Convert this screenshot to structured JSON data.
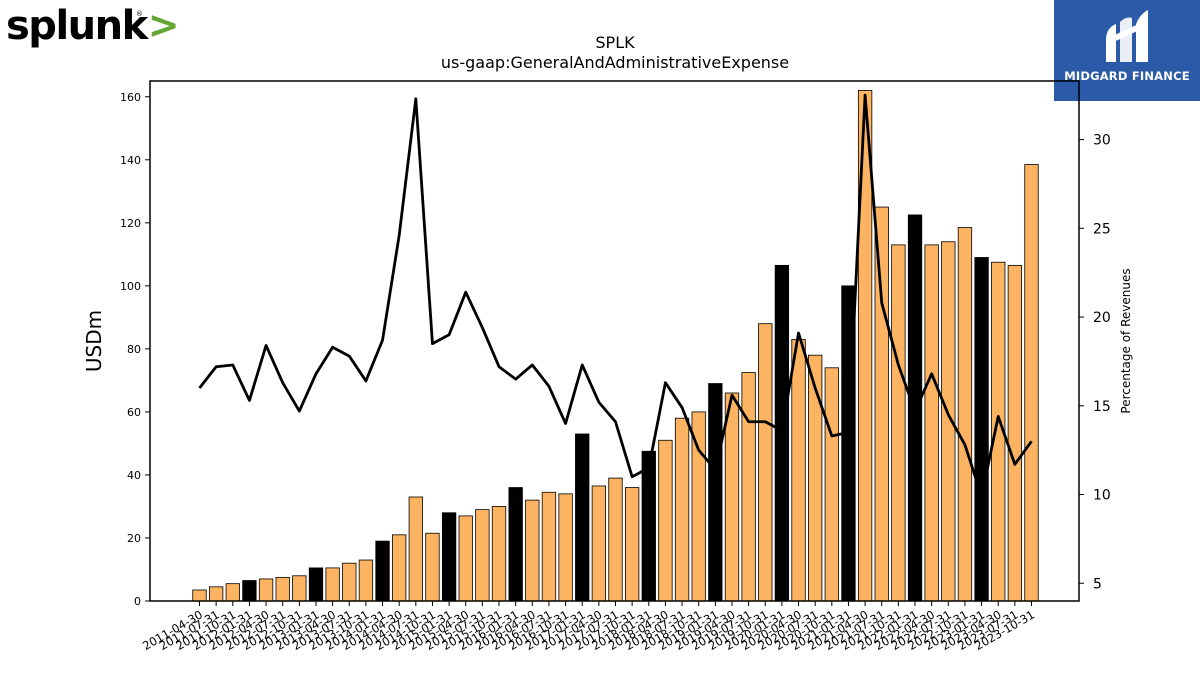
{
  "logos": {
    "left": {
      "word": "splunk",
      "chevron": ">",
      "reg": "®",
      "accent": "#65a637"
    },
    "right": {
      "brand": "MIDGARD FINANCE",
      "icon": "midgard-logo-icon",
      "background": "#2a5aa8"
    }
  },
  "colors": {
    "bar_default": "#fdb462",
    "bar_highlight": "#000000",
    "line": "#000000"
  },
  "chart_data": {
    "type": "bar",
    "title": "SPLK",
    "subtitle": "us-gaap:GeneralAndAdministrativeExpense",
    "ylabel": "USDm",
    "y2label": "Percentage of Revenues",
    "ylim": [
      0,
      165
    ],
    "y2lim": [
      4.0,
      33.3
    ],
    "yticks": [
      0,
      20,
      40,
      60,
      80,
      100,
      120,
      140,
      160
    ],
    "y2ticks": [
      5,
      10,
      15,
      20,
      25,
      30
    ],
    "ytick_labels": [
      "0",
      "20",
      "40",
      "60",
      "80",
      "100",
      "120",
      "140",
      "160"
    ],
    "y2tick_labels": [
      "5",
      "10",
      "15",
      "20",
      "25",
      "30"
    ],
    "categories": [
      "2011-04-30",
      "2011-07-31",
      "2011-10-31",
      "2012-01-31",
      "2012-04-30",
      "2012-07-31",
      "2012-10-31",
      "2013-01-31",
      "2013-04-30",
      "2013-07-31",
      "2013-10-31",
      "2014-01-31",
      "2014-04-30",
      "2014-07-31",
      "2014-10-31",
      "2015-01-31",
      "2015-04-30",
      "2015-07-31",
      "2015-10-31",
      "2016-01-31",
      "2016-04-30",
      "2016-07-31",
      "2016-10-31",
      "2017-01-31",
      "2017-04-30",
      "2017-07-31",
      "2017-10-31",
      "2018-01-31",
      "2018-04-30",
      "2018-07-31",
      "2018-10-31",
      "2019-01-31",
      "2019-04-30",
      "2019-07-31",
      "2019-10-31",
      "2020-01-31",
      "2020-04-30",
      "2020-07-31",
      "2020-10-31",
      "2021-01-31",
      "2021-04-30",
      "2021-07-31",
      "2021-10-31",
      "2022-01-31",
      "2022-04-30",
      "2022-07-31",
      "2022-10-31",
      "2023-01-31",
      "2023-04-30",
      "2023-07-31",
      "2023-10-31"
    ],
    "series": [
      {
        "type": "bar",
        "axis": "left",
        "values": [
          3.5,
          4.5,
          5.5,
          6.5,
          7,
          7.5,
          8,
          10.5,
          10.5,
          12,
          13,
          19,
          21,
          33,
          21.5,
          28,
          27,
          29,
          30,
          36,
          32,
          34.5,
          34,
          53,
          36.5,
          39,
          36,
          47.5,
          51,
          58,
          60,
          69,
          66,
          72.5,
          88,
          106.5,
          83,
          78,
          74,
          100,
          162,
          125,
          113,
          122.5,
          113,
          114,
          118.5,
          109,
          107.5,
          106.5,
          138.5
        ],
        "highlight": [
          false,
          false,
          false,
          true,
          false,
          false,
          false,
          true,
          false,
          false,
          false,
          true,
          false,
          false,
          false,
          true,
          false,
          false,
          false,
          true,
          false,
          false,
          false,
          true,
          false,
          false,
          false,
          true,
          false,
          false,
          false,
          true,
          false,
          false,
          false,
          true,
          false,
          false,
          false,
          true,
          false,
          false,
          false,
          true,
          false,
          false,
          false,
          true,
          false,
          false,
          false
        ]
      },
      {
        "type": "line",
        "axis": "right",
        "values": [
          16,
          17.2,
          17.3,
          15.3,
          18.4,
          16.3,
          14.7,
          16.8,
          18.3,
          17.8,
          16.4,
          18.7,
          24.6,
          32.3,
          18.5,
          19,
          21.4,
          19.4,
          17.2,
          16.5,
          17.3,
          16.1,
          14,
          17.3,
          15.2,
          14.1,
          11,
          11.5,
          16.3,
          14.9,
          12.5,
          11.4,
          15.6,
          14.1,
          14.1,
          13.6,
          19.1,
          16,
          13.3,
          13.5,
          32.5,
          20.8,
          17.3,
          14.7,
          16.8,
          14.5,
          12.8,
          9.9,
          14.4,
          11.7,
          13
        ]
      }
    ],
    "grid": false,
    "legend": "none"
  }
}
